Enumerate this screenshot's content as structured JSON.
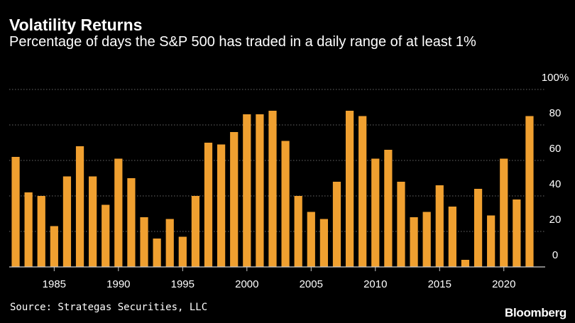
{
  "chart_data": {
    "type": "bar",
    "title": "Volatility Returns",
    "subtitle": "Percentage of days the S&P 500 has traded in a daily range of at least 1%",
    "categories": [
      1982,
      1983,
      1984,
      1985,
      1986,
      1987,
      1988,
      1989,
      1990,
      1991,
      1992,
      1993,
      1994,
      1995,
      1996,
      1997,
      1998,
      1999,
      2000,
      2001,
      2002,
      2003,
      2004,
      2005,
      2006,
      2007,
      2008,
      2009,
      2010,
      2011,
      2012,
      2013,
      2014,
      2015,
      2016,
      2017,
      2018,
      2019,
      2020,
      2021,
      2022
    ],
    "values": [
      62,
      42,
      40,
      23,
      51,
      68,
      51,
      35,
      61,
      50,
      28,
      16,
      27,
      17,
      40,
      70,
      69,
      76,
      86,
      86,
      88,
      71,
      40,
      31,
      27,
      48,
      88,
      85,
      61,
      66,
      48,
      28,
      31,
      46,
      34,
      4,
      44,
      29,
      61,
      38,
      85
    ],
    "x_tick_labels": [
      "1985",
      "1990",
      "1995",
      "2000",
      "2005",
      "2010",
      "2015",
      "2020"
    ],
    "y_tick_labels": [
      "100%",
      "80",
      "60",
      "40",
      "20",
      "0"
    ],
    "ylim": [
      0,
      100
    ],
    "xlabel": "",
    "ylabel": "",
    "grid": true,
    "bar_color": "#f0a030",
    "grid_color": "#6a6a6a",
    "axis_color": "#cccccc"
  },
  "source": "Source: Strategas Securities, LLC",
  "brand": "Bloomberg"
}
